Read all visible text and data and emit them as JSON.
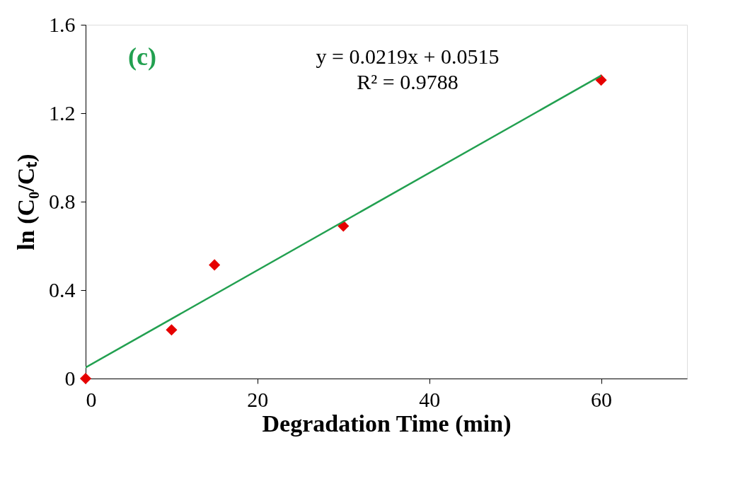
{
  "chart_data": {
    "type": "scatter",
    "xlabel": "Degradation Time (min)",
    "ylabel": "ln (C₀/Cₜ)",
    "annotations": [
      "(c)",
      "y = 0.0219x + 0.0515",
      "R² = 0.9788"
    ],
    "x": [
      0,
      10,
      15,
      30,
      60
    ],
    "series": [
      {
        "color": "#e60000",
        "marker": "diamond",
        "values": [
          0,
          0.22,
          0.514,
          0.69,
          1.35
        ]
      },
      {
        "type": "line",
        "color": "#22a050",
        "marker": "none",
        "line_style": "solid",
        "x": [
          0,
          60
        ],
        "values": [
          0.05,
          1.37
        ]
      }
    ],
    "xlim": [
      0,
      70
    ],
    "xticks": [
      0,
      20,
      40,
      60
    ],
    "ylim": [
      0,
      1.6
    ],
    "yticks": [
      0,
      0.4,
      0.8,
      1.2,
      1.6
    ]
  }
}
